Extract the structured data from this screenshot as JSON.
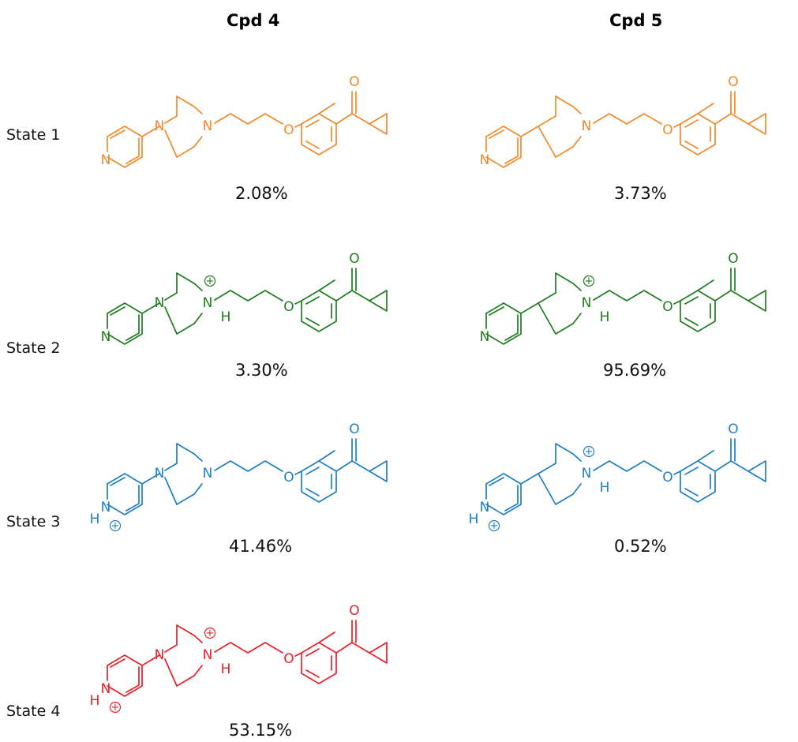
{
  "columns": [
    "Cpd 4",
    "Cpd 5"
  ],
  "states": [
    "State 1",
    "State 2",
    "State 3",
    "State 4"
  ],
  "colors": {
    "state1": "#f08a2c",
    "state2": "#1e7d1e",
    "state3": "#1e7fc3",
    "state4": "#e8202a"
  },
  "atom_labels": {
    "nitrogen": "N",
    "oxygen": "O",
    "hydrogen": "H",
    "plus": "+"
  },
  "cpd4": {
    "state1_pct": "2.08%",
    "state2_pct": "3.30%",
    "state3_pct": "41.46%",
    "state4_pct": "53.15%"
  },
  "cpd5": {
    "state1_pct": "3.73%",
    "state2_pct": "95.69%",
    "state3_pct": "0.52%"
  }
}
